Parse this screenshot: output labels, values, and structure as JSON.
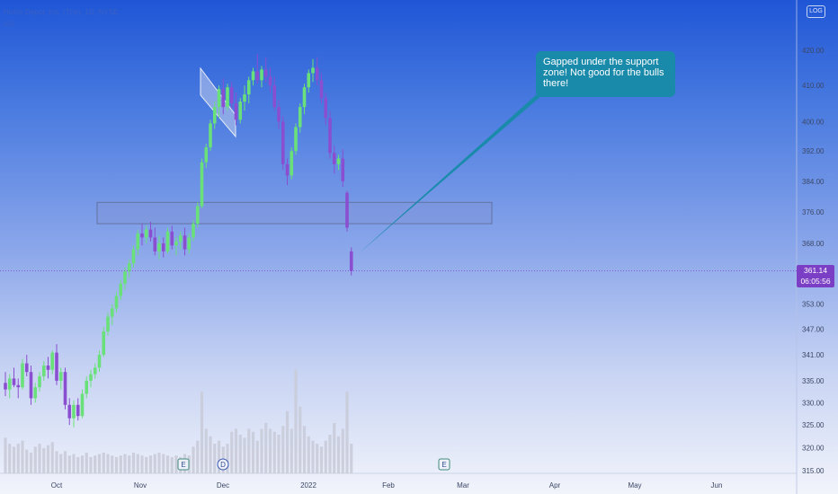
{
  "header": {
    "symbol_line": "Home Depot, Inc. (The), 1D, NYSE",
    "sub_line": "Vol"
  },
  "toolbar": {
    "logo_label": "LOG"
  },
  "annotation": {
    "text": "Gapped under the support zone!  Not good for the bulls there!"
  },
  "last_price": {
    "price": "361.14",
    "countdown": "06:05:56"
  },
  "colors": {
    "up": "#6ae07a",
    "down": "#8a4fd0",
    "volume": "#c9cbd8",
    "zone_fill": "#7f95d8",
    "zone_stroke": "#5d6a90",
    "arrow": "#1a8aab"
  },
  "chart_data": {
    "type": "candlestick",
    "symbol": "Home Depot, Inc. (The)",
    "interval": "1D",
    "exchange": "NYSE",
    "y_axis": {
      "scale": "log",
      "tick_labels": [
        "315.00",
        "320.00",
        "325.00",
        "330.00",
        "335.00",
        "341.00",
        "347.00",
        "353.00",
        "361.14",
        "368.00",
        "376.00",
        "384.00",
        "392.00",
        "400.00",
        "410.00",
        "420.00"
      ]
    },
    "x_axis": {
      "tick_labels": [
        "Oct",
        "Nov",
        "Dec",
        "2022",
        "Feb",
        "Mar",
        "Apr",
        "May",
        "Jun"
      ]
    },
    "events": [
      {
        "label": "E",
        "date": "Nov 16"
      },
      {
        "label": "D",
        "date": "Dec 1"
      },
      {
        "label": "E",
        "date": "Feb 22"
      }
    ],
    "support_zone": {
      "low": 373.0,
      "high": 378.5
    },
    "last_price": 361.14,
    "candles": [
      [
        334.5,
        337.0,
        331.5,
        333.0
      ],
      [
        333.0,
        336.5,
        331.0,
        335.5
      ],
      [
        335.5,
        338.0,
        333.5,
        334.0
      ],
      [
        334.0,
        335.5,
        331.0,
        333.5
      ],
      [
        333.5,
        340.0,
        333.0,
        339.0
      ],
      [
        339.0,
        341.0,
        336.0,
        337.0
      ],
      [
        337.0,
        338.5,
        329.5,
        331.0
      ],
      [
        331.0,
        334.5,
        330.0,
        333.5
      ],
      [
        333.5,
        337.0,
        332.5,
        336.0
      ],
      [
        336.0,
        339.5,
        335.0,
        338.5
      ],
      [
        338.5,
        340.5,
        335.5,
        337.5
      ],
      [
        337.5,
        342.0,
        336.5,
        341.5
      ],
      [
        341.5,
        343.5,
        334.0,
        335.0
      ],
      [
        335.0,
        338.0,
        333.0,
        337.0
      ],
      [
        337.0,
        338.0,
        328.5,
        329.5
      ],
      [
        329.5,
        331.0,
        325.0,
        326.5
      ],
      [
        326.5,
        330.5,
        324.5,
        329.5
      ],
      [
        329.5,
        331.0,
        326.0,
        327.0
      ],
      [
        327.0,
        333.0,
        326.5,
        332.0
      ],
      [
        332.0,
        336.0,
        331.0,
        335.0
      ],
      [
        335.0,
        337.5,
        333.5,
        336.5
      ],
      [
        336.5,
        339.0,
        335.5,
        338.0
      ],
      [
        338.0,
        342.0,
        337.0,
        341.0
      ],
      [
        341.0,
        347.5,
        340.5,
        346.5
      ],
      [
        346.5,
        351.0,
        345.5,
        350.0
      ],
      [
        350.0,
        353.0,
        348.0,
        352.0
      ],
      [
        352.0,
        356.0,
        351.0,
        355.0
      ],
      [
        355.0,
        359.0,
        354.0,
        358.0
      ],
      [
        358.0,
        362.0,
        356.5,
        361.0
      ],
      [
        361.0,
        364.0,
        359.5,
        363.0
      ],
      [
        363.0,
        367.5,
        362.0,
        366.5
      ],
      [
        366.5,
        371.5,
        365.0,
        370.5
      ],
      [
        370.5,
        373.0,
        367.5,
        369.5
      ],
      [
        369.5,
        372.5,
        368.0,
        371.5
      ],
      [
        371.5,
        373.5,
        368.5,
        369.5
      ],
      [
        369.5,
        372.0,
        365.0,
        366.0
      ],
      [
        366.0,
        370.0,
        364.0,
        368.0
      ],
      [
        368.0,
        369.5,
        364.5,
        366.0
      ],
      [
        366.0,
        372.0,
        365.5,
        371.0
      ],
      [
        371.0,
        372.5,
        366.5,
        367.5
      ],
      [
        367.5,
        369.5,
        365.0,
        368.5
      ],
      [
        368.5,
        371.0,
        366.5,
        370.0
      ],
      [
        370.0,
        372.0,
        365.0,
        366.5
      ],
      [
        366.5,
        370.5,
        365.5,
        369.5
      ],
      [
        369.5,
        374.0,
        368.5,
        373.0
      ],
      [
        373.0,
        378.5,
        372.0,
        377.5
      ],
      [
        377.5,
        390.0,
        377.0,
        389.0
      ],
      [
        389.0,
        394.0,
        387.5,
        393.0
      ],
      [
        393.0,
        400.5,
        392.0,
        399.5
      ],
      [
        399.5,
        405.5,
        398.0,
        404.0
      ],
      [
        404.0,
        410.0,
        401.0,
        409.0
      ],
      [
        409.0,
        412.0,
        402.0,
        404.0
      ],
      [
        404.0,
        410.5,
        403.0,
        409.5
      ],
      [
        409.5,
        411.0,
        403.5,
        405.0
      ],
      [
        405.0,
        408.0,
        399.0,
        400.5
      ],
      [
        400.5,
        406.5,
        399.5,
        405.5
      ],
      [
        405.5,
        410.0,
        403.0,
        407.5
      ],
      [
        407.5,
        412.5,
        405.0,
        411.5
      ],
      [
        411.5,
        415.0,
        410.0,
        414.0
      ],
      [
        414.0,
        419.0,
        410.5,
        411.5
      ],
      [
        411.5,
        415.5,
        409.5,
        414.5
      ],
      [
        414.5,
        418.0,
        411.0,
        412.5
      ],
      [
        412.5,
        415.0,
        408.0,
        410.0
      ],
      [
        410.0,
        412.5,
        403.0,
        404.0
      ],
      [
        404.0,
        406.0,
        398.0,
        400.0
      ],
      [
        400.0,
        401.5,
        387.0,
        388.5
      ],
      [
        388.5,
        390.0,
        383.0,
        385.5
      ],
      [
        385.5,
        393.0,
        384.5,
        392.0
      ],
      [
        392.0,
        399.5,
        391.0,
        398.5
      ],
      [
        398.5,
        405.0,
        397.0,
        404.0
      ],
      [
        404.0,
        410.5,
        402.0,
        409.5
      ],
      [
        409.5,
        414.5,
        408.0,
        413.5
      ],
      [
        413.5,
        417.5,
        411.0,
        415.0
      ],
      [
        415.0,
        418.0,
        410.0,
        411.5
      ],
      [
        411.5,
        413.5,
        405.0,
        406.5
      ],
      [
        406.5,
        408.0,
        399.0,
        401.0
      ],
      [
        401.0,
        403.0,
        390.0,
        391.5
      ],
      [
        391.5,
        393.5,
        386.0,
        388.5
      ],
      [
        388.5,
        391.0,
        387.0,
        390.0
      ],
      [
        390.0,
        392.5,
        382.5,
        384.0
      ],
      [
        381.0,
        381.5,
        371.0,
        372.0
      ],
      [
        366.0,
        367.0,
        360.0,
        361.14
      ]
    ],
    "volumes": [
      0.24,
      0.2,
      0.18,
      0.2,
      0.22,
      0.16,
      0.14,
      0.18,
      0.2,
      0.17,
      0.19,
      0.21,
      0.15,
      0.13,
      0.15,
      0.12,
      0.13,
      0.11,
      0.12,
      0.14,
      0.11,
      0.12,
      0.13,
      0.14,
      0.13,
      0.12,
      0.11,
      0.12,
      0.13,
      0.12,
      0.14,
      0.13,
      0.12,
      0.11,
      0.12,
      0.13,
      0.14,
      0.13,
      0.12,
      0.11,
      0.12,
      0.11,
      0.13,
      0.12,
      0.18,
      0.22,
      0.55,
      0.3,
      0.25,
      0.2,
      0.22,
      0.18,
      0.2,
      0.28,
      0.3,
      0.26,
      0.24,
      0.3,
      0.28,
      0.22,
      0.3,
      0.34,
      0.3,
      0.28,
      0.26,
      0.32,
      0.42,
      0.3,
      0.7,
      0.45,
      0.32,
      0.25,
      0.22,
      0.2,
      0.18,
      0.22,
      0.26,
      0.34,
      0.25,
      0.3,
      0.55,
      0.2
    ]
  }
}
